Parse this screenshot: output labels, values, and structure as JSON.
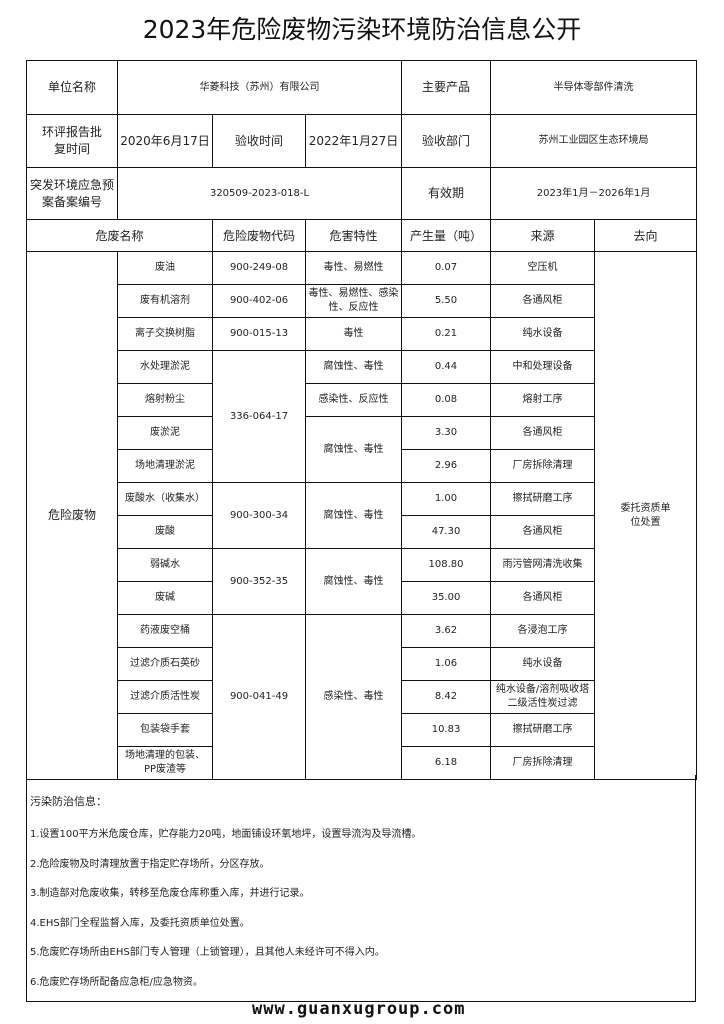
{
  "title": "2023年危险废物污染环境防治信息公开",
  "info": {
    "unit_label": "单位名称",
    "unit_value": "华菱科技（苏州）有限公司",
    "product_label": "主要产品",
    "product_value": "半导体零部件清洗",
    "eia_label": "环评报告批复时间",
    "eia_value": "2020年6月17日",
    "acceptance_time_label": "验收时间",
    "acceptance_time_value": "2022年1月27日",
    "acceptance_dept_label": "验收部门",
    "acceptance_dept_value": "苏州工业园区生态环境局",
    "plan_label": "突发环境应急预案备案编号",
    "plan_value": "320509-2023-018-L",
    "validity_label": "有效期",
    "validity_value": "2023年1月－2026年1月"
  },
  "headers": {
    "name": "危废名称",
    "code": "危险废物代码",
    "hazard": "危害特性",
    "amount": "产生量（吨）",
    "source": "来源",
    "destination": "去向"
  },
  "category": "危险废物",
  "destination": "委托资质单位处置",
  "wastes": [
    {
      "name": "废油",
      "amount": "0.07",
      "source": "空压机"
    },
    {
      "name": "废有机溶剂",
      "amount": "5.50",
      "source": "各通风柜"
    },
    {
      "name": "离子交换树脂",
      "amount": "0.21",
      "source": "纯水设备"
    },
    {
      "name": "水处理淤泥",
      "amount": "0.44",
      "source": "中和处理设备"
    },
    {
      "name": "熔射粉尘",
      "amount": "0.08",
      "source": "熔射工序"
    },
    {
      "name": "废淤泥",
      "amount": "3.30",
      "source": "各通风柜"
    },
    {
      "name": "场地清理淤泥",
      "amount": "2.96",
      "source": "厂房拆除清理"
    },
    {
      "name": "废酸水（收集水）",
      "amount": "1.00",
      "source": "擦拭研磨工序"
    },
    {
      "name": "废酸",
      "amount": "47.30",
      "source": "各通风柜"
    },
    {
      "name": "弱碱水",
      "amount": "108.80",
      "source": "雨污管网清洗收集"
    },
    {
      "name": "废碱",
      "amount": "35.00",
      "source": "各通风柜"
    },
    {
      "name": "药液废空桶",
      "amount": "3.62",
      "source": "各浸泡工序"
    },
    {
      "name": "过滤介质石英砂",
      "amount": "1.06",
      "source": "纯水设备"
    },
    {
      "name": "过滤介质活性炭",
      "amount": "8.42",
      "source": "纯水设备/溶剂吸收塔二级活性炭过滤"
    },
    {
      "name": "包装袋手套",
      "amount": "10.83",
      "source": "擦拭研磨工序"
    },
    {
      "name": "场地清理的包装、PP废渣等",
      "amount": "6.18",
      "source": "厂房拆除清理"
    }
  ],
  "codes": [
    {
      "value": "900-249-08",
      "span": 1
    },
    {
      "value": "900-402-06",
      "span": 1
    },
    {
      "value": "900-015-13",
      "span": 1
    },
    {
      "value": "336-064-17",
      "span": 4
    },
    {
      "value": "900-300-34",
      "span": 2
    },
    {
      "value": "900-352-35",
      "span": 2
    },
    {
      "value": "900-041-49",
      "span": 5
    }
  ],
  "hazards": [
    {
      "value": "毒性、易燃性",
      "span": 1
    },
    {
      "value": "毒性、易燃性、感染性、反应性",
      "span": 1
    },
    {
      "value": "毒性",
      "span": 1
    },
    {
      "value": "腐蚀性、毒性",
      "span": 1
    },
    {
      "value": "感染性、反应性",
      "span": 1
    },
    {
      "value": "腐蚀性、毒性",
      "span": 2
    },
    {
      "value": "腐蚀性、毒性",
      "span": 2
    },
    {
      "value": "腐蚀性、毒性",
      "span": 2
    },
    {
      "value": "感染性、毒性",
      "span": 5
    }
  ],
  "notes": {
    "title": "污染防治信息：",
    "items": [
      "1.设置100平方米危废仓库，贮存能力20吨，地面铺设环氧地坪，设置导流沟及导流槽。",
      "2.危险废物及时清理放置于指定贮存场所，分区存放。",
      "3.制造部对危废收集，转移至危废仓库称重入库，并进行记录。",
      "4.EHS部门全程监督入库，及委托资质单位处置。",
      "5.危废贮存场所由EHS部门专人管理（上锁管理），且其他人未经许可不得入内。",
      "6.危废贮存场所配备应急柜/应急物资。"
    ]
  },
  "footer": "www.guanxugroup.com"
}
